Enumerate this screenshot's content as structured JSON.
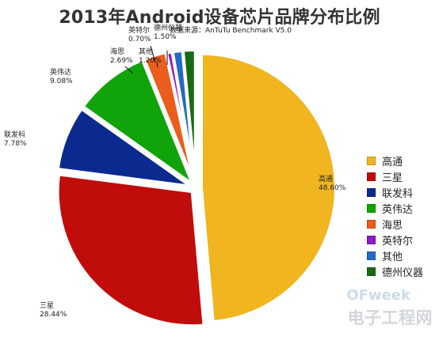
{
  "chart_data": {
    "type": "pie",
    "title": "2013年Android设备芯片品牌分布比例",
    "subtitle": "数据来源：AnTuTu Benchmark V5.0",
    "legend_position": "right",
    "slices": [
      {
        "label": "高通",
        "value": 48.6,
        "value_text": "48.60%",
        "color": "#f0b51f"
      },
      {
        "label": "三星",
        "value": 28.44,
        "value_text": "28.44%",
        "color": "#c10c0c"
      },
      {
        "label": "联发科",
        "value": 7.78,
        "value_text": "7.78%",
        "color": "#0b2a8f"
      },
      {
        "label": "英伟达",
        "value": 9.08,
        "value_text": "9.08%",
        "color": "#10a30a"
      },
      {
        "label": "海思",
        "value": 2.69,
        "value_text": "2.69%",
        "color": "#ea5d1c"
      },
      {
        "label": "英特尔",
        "value": 0.7,
        "value_text": "0.70%",
        "color": "#8f19c2"
      },
      {
        "label": "其他",
        "value": 1.2,
        "value_text": "1.20%",
        "color": "#2569c4"
      },
      {
        "label": "德州仪器",
        "value": 1.5,
        "value_text": "1.50%",
        "color": "#166b12"
      }
    ]
  },
  "watermark": {
    "top": "OFweek",
    "bottom": "电子工程网"
  }
}
